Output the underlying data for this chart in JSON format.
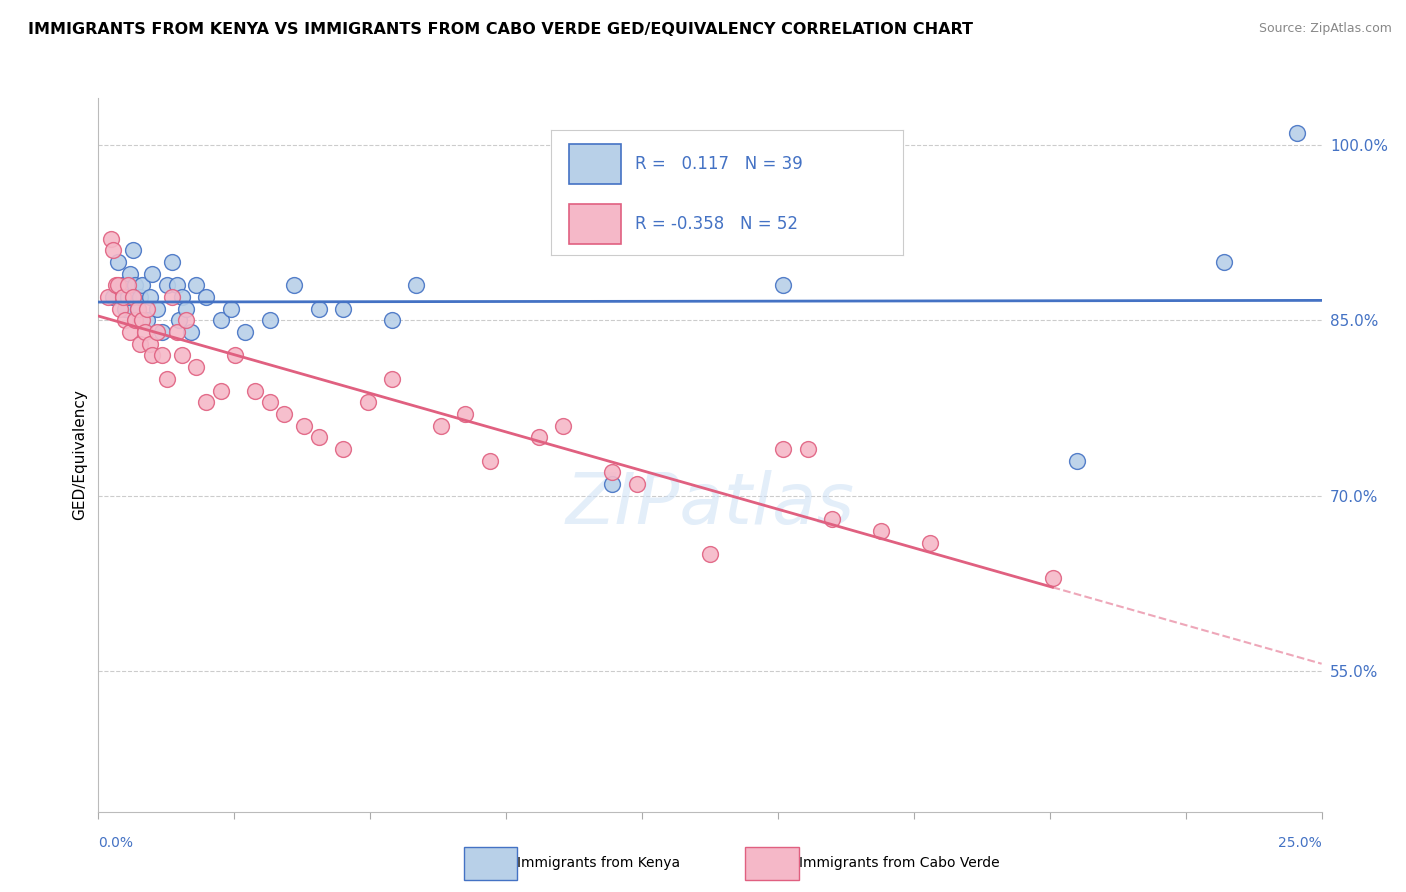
{
  "title": "IMMIGRANTS FROM KENYA VS IMMIGRANTS FROM CABO VERDE GED/EQUIVALENCY CORRELATION CHART",
  "source": "Source: ZipAtlas.com",
  "ylabel": "GED/Equivalency",
  "yticks": [
    55.0,
    70.0,
    85.0,
    100.0
  ],
  "xmin": 0.0,
  "xmax": 25.0,
  "ymin": 43.0,
  "ymax": 104.0,
  "kenya_R": 0.117,
  "kenya_N": 39,
  "caboverde_R": -0.358,
  "caboverde_N": 52,
  "kenya_color": "#b8d0e8",
  "caboverde_color": "#f5b8c8",
  "kenya_line_color": "#4472c4",
  "caboverde_line_color": "#e06080",
  "kenya_points_x": [
    0.3,
    0.4,
    0.5,
    0.55,
    0.6,
    0.65,
    0.7,
    0.75,
    0.8,
    0.85,
    0.9,
    1.0,
    1.05,
    1.1,
    1.2,
    1.3,
    1.4,
    1.5,
    1.6,
    1.65,
    1.7,
    1.8,
    1.9,
    2.0,
    2.2,
    2.5,
    2.7,
    3.0,
    3.5,
    4.0,
    4.5,
    5.0,
    6.0,
    6.5,
    10.5,
    14.0,
    20.0,
    23.0,
    24.5
  ],
  "kenya_points_y": [
    87,
    90,
    88,
    86,
    87,
    89,
    91,
    88,
    86,
    87,
    88,
    85,
    87,
    89,
    86,
    84,
    88,
    90,
    88,
    85,
    87,
    86,
    84,
    88,
    87,
    85,
    86,
    84,
    85,
    88,
    86,
    86,
    85,
    88,
    71,
    88,
    73,
    90,
    101
  ],
  "caboverde_points_x": [
    0.2,
    0.25,
    0.3,
    0.35,
    0.4,
    0.45,
    0.5,
    0.55,
    0.6,
    0.65,
    0.7,
    0.75,
    0.8,
    0.85,
    0.9,
    0.95,
    1.0,
    1.05,
    1.1,
    1.2,
    1.3,
    1.4,
    1.5,
    1.6,
    1.7,
    1.8,
    2.0,
    2.2,
    2.5,
    2.8,
    3.2,
    3.5,
    3.8,
    4.2,
    4.5,
    5.0,
    5.5,
    6.0,
    7.0,
    7.5,
    8.0,
    9.0,
    9.5,
    10.5,
    11.0,
    12.5,
    14.0,
    14.5,
    15.0,
    16.0,
    17.0,
    19.5
  ],
  "caboverde_points_y": [
    87,
    92,
    91,
    88,
    88,
    86,
    87,
    85,
    88,
    84,
    87,
    85,
    86,
    83,
    85,
    84,
    86,
    83,
    82,
    84,
    82,
    80,
    87,
    84,
    82,
    85,
    81,
    78,
    79,
    82,
    79,
    78,
    77,
    76,
    75,
    74,
    78,
    80,
    76,
    77,
    73,
    75,
    76,
    72,
    71,
    65,
    74,
    74,
    68,
    67,
    66,
    63
  ],
  "watermark": "ZIPatlas",
  "legend_N_kenya": 39,
  "legend_N_caboverde": 52
}
